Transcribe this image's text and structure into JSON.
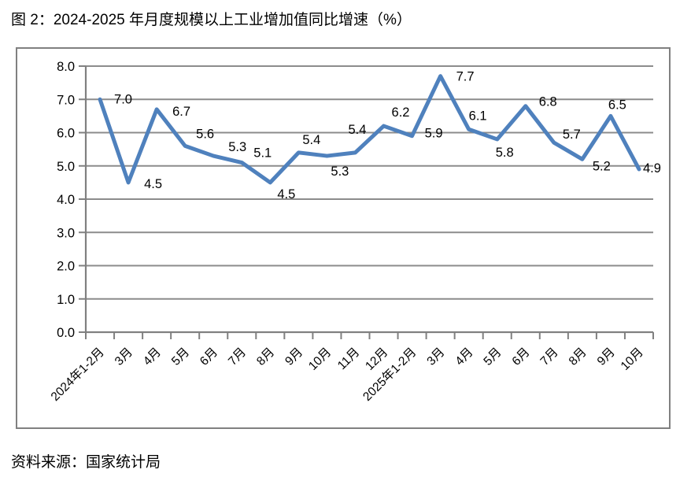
{
  "title": "图 2：2024-2025 年月度规模以上工业增加值同比增速（%）",
  "source": "资料来源：国家统计局",
  "chart_data": {
    "type": "line",
    "title": "图 2：2024-2025 年月度规模以上工业增加值同比增速（%）",
    "categories": [
      "2024年1-2月",
      "3月",
      "4月",
      "5月",
      "6月",
      "7月",
      "8月",
      "9月",
      "10月",
      "11月",
      "12月",
      "2025年1-2月",
      "3月",
      "4月",
      "5月",
      "6月",
      "7月",
      "8月",
      "9月",
      "10月"
    ],
    "values": [
      7.0,
      4.5,
      6.7,
      5.6,
      5.3,
      5.1,
      4.5,
      5.4,
      5.3,
      5.4,
      6.2,
      5.9,
      7.7,
      6.1,
      5.8,
      6.8,
      5.7,
      5.2,
      6.5,
      4.9
    ],
    "data_labels": [
      "7.0",
      "4.5",
      "6.7",
      "5.6",
      "5.3",
      "5.1",
      "4.5",
      "5.4",
      "5.3",
      "5.4",
      "6.2",
      "5.9",
      "7.7",
      "6.1",
      "5.8",
      "6.8",
      "5.7",
      "5.2",
      "6.5",
      "4.9"
    ],
    "xlabel": "",
    "ylabel": "",
    "ylim": [
      0,
      8
    ],
    "ytick_labels": [
      "0.0",
      "1.0",
      "2.0",
      "3.0",
      "4.0",
      "5.0",
      "6.0",
      "7.0",
      "8.0"
    ],
    "grid": true,
    "legend": "none",
    "colors": {
      "line": "#4F81BD",
      "grid": "#8C8C8C",
      "axis": "#808080",
      "text": "#000000"
    }
  }
}
